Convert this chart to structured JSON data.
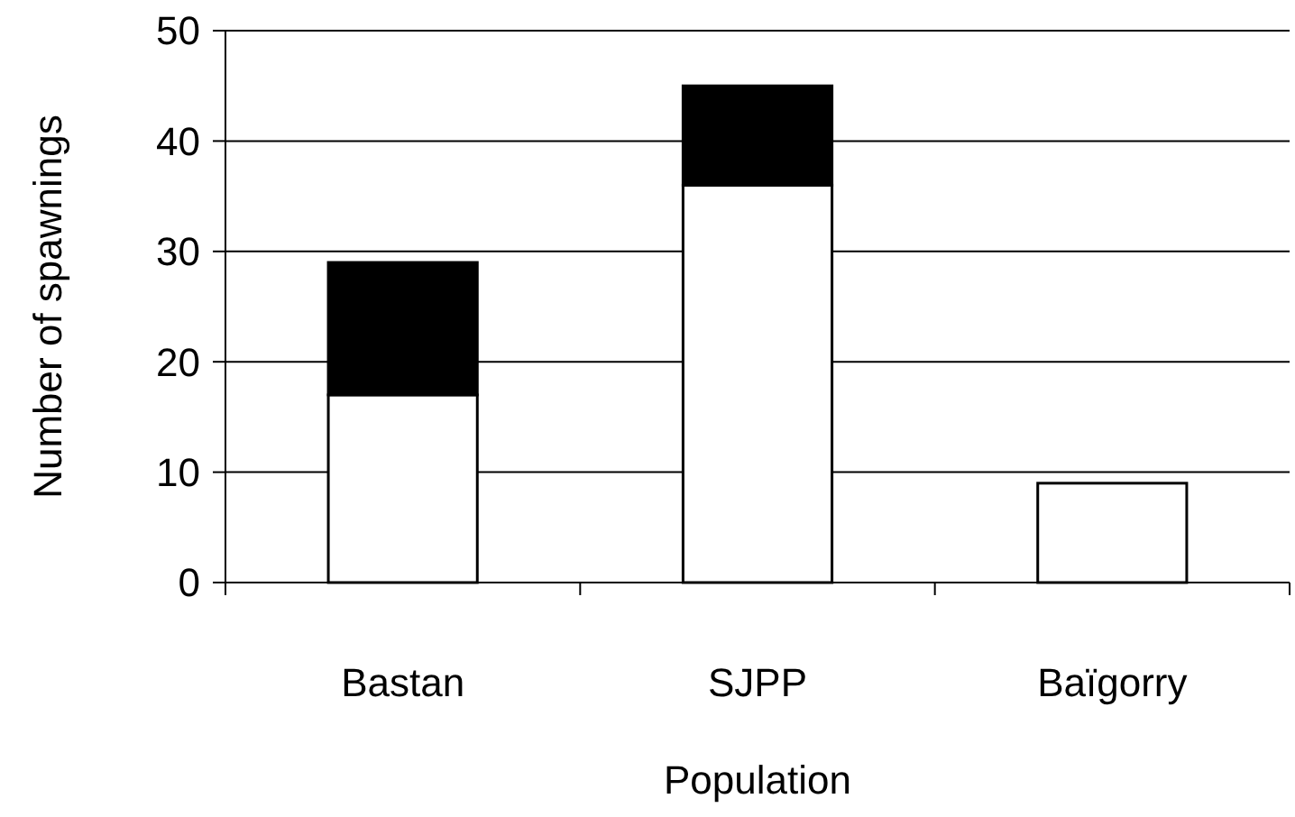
{
  "chart_data": {
    "type": "bar",
    "stacked": true,
    "xlabel": "Population",
    "ylabel": "Number of spawnings",
    "categories": [
      "Bastan",
      "SJPP",
      "Baïgorry"
    ],
    "series": [
      {
        "color": "#ffffff",
        "values": [
          17,
          36,
          9
        ]
      },
      {
        "color": "#000000",
        "values": [
          12,
          9,
          0
        ]
      }
    ],
    "ylim": [
      0,
      50
    ],
    "yticks": [
      0,
      10,
      20,
      30,
      40,
      50
    ],
    "grid": "y"
  }
}
